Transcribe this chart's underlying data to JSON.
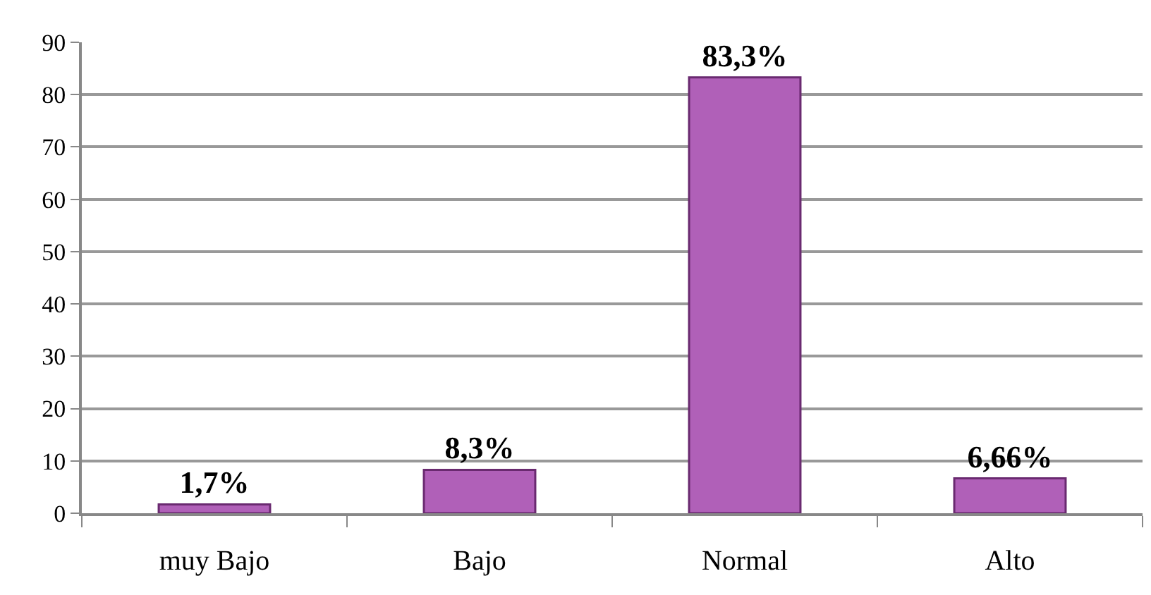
{
  "chart_data": {
    "type": "bar",
    "categories": [
      "muy Bajo",
      "Bajo",
      "Normal",
      "Alto"
    ],
    "values": [
      1.7,
      8.3,
      83.3,
      6.66
    ],
    "value_labels": [
      "1,7%",
      "8,3%",
      "83,3%",
      "6,66%"
    ],
    "color": "#b060b8",
    "ylim": [
      0,
      90
    ],
    "yticks": [
      0,
      10,
      20,
      30,
      40,
      50,
      60,
      70,
      80,
      90
    ],
    "grid": "y"
  }
}
